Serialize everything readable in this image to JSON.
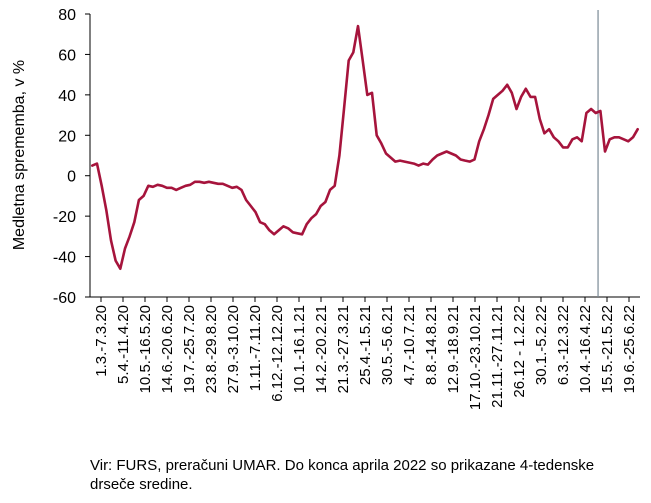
{
  "chart_data": {
    "type": "line",
    "ylabel": "Medletna sprememba, v %",
    "xlabel": "",
    "title": "",
    "ylim": [
      -60,
      80
    ],
    "yticks": [
      -60,
      -40,
      -20,
      0,
      20,
      40,
      60,
      80
    ],
    "grid": false,
    "x_tick_labels": [
      "1.3.-7.3.20",
      "5.4.-11.4.20",
      "10.5.-16.5.20",
      "14.6.-20.6.20",
      "19.7.-25.7.20",
      "23.8.-29.8.20",
      "27.9.-3.10.20",
      "1.11.-7.11.20",
      "6.12.-12.12.20",
      "10.1.-16.1.21",
      "14.2.-20.2.21",
      "21.3.-27.3.21",
      "25.4.-1.5.21",
      "30.5.-5.6.21",
      "4.7.-10.7.21",
      "8.8.-14.8.21",
      "12.9.-18.9.21",
      "17.10.-23.10.21",
      "21.11.-27.11.21",
      "26.12 - 1.2.22",
      "30.1.-5.2.22",
      "6.3.-12.3.22",
      "10.4.-16.4.22",
      "15.5.-21.5.22",
      "19.6.-25.6.22"
    ],
    "series": [
      {
        "color": "#a6143c",
        "values": [
          5,
          6,
          -5,
          -17,
          -32,
          -42,
          -46,
          -36,
          -30,
          -23,
          -12,
          -10,
          -5,
          -5.5,
          -4.5,
          -5,
          -6,
          -6,
          -7,
          -6,
          -5,
          -4.5,
          -3,
          -3,
          -3.5,
          -3,
          -3.5,
          -4,
          -4,
          -5,
          -6,
          -5.5,
          -7,
          -12,
          -15,
          -18,
          -23,
          -24,
          -27,
          -29,
          -27,
          -25,
          -26,
          -28,
          -28.5,
          -29,
          -24,
          -21,
          -19,
          -15,
          -13,
          -7,
          -5,
          10,
          33,
          57,
          61,
          74,
          57,
          40,
          41,
          20,
          16,
          11,
          9,
          7,
          7.5,
          7,
          6.5,
          6,
          5,
          6,
          5.5,
          8,
          10,
          11,
          12,
          11,
          10,
          8,
          7.5,
          7,
          8,
          17,
          23,
          30,
          38,
          40,
          42,
          45,
          41,
          33,
          39,
          43,
          39,
          39,
          28,
          21,
          23,
          19,
          17,
          14,
          14,
          18,
          19,
          17,
          31,
          33,
          31,
          32,
          12,
          18,
          19,
          19,
          18,
          17,
          19,
          23
        ]
      }
    ],
    "vertical_marker": {
      "after_point": 108,
      "color": "#7a8a96"
    }
  },
  "source_text": "Vir: FURS, preračuni UMAR. Do konca aprila 2022 so prikazane 4-tedenske drseče sredine."
}
